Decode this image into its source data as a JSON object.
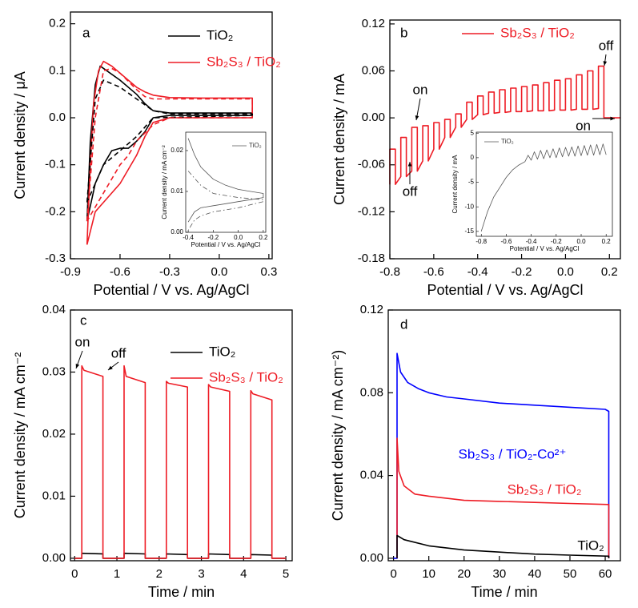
{
  "chart_data": [
    {
      "type": "line",
      "panel_label": "a",
      "xlabel": "Potential / V vs. Ag/AgCl",
      "ylabel": "Current density / μA",
      "xlim": [
        -0.9,
        0.32
      ],
      "xticks": [
        -0.9,
        -0.6,
        -0.3,
        {
          "value": 0,
          "label": "0.0"
        },
        0.3
      ],
      "ylim": [
        -0.3,
        0.225
      ],
      "yticks": [
        -0.3,
        -0.2,
        -0.1,
        {
          "value": 0,
          "label": "0.0"
        },
        0.1,
        0.2
      ],
      "legend": "upper right",
      "series": [
        {
          "name": "TiO₂",
          "color": "#000000",
          "linestyle": "solid",
          "x": [
            -0.8,
            -0.78,
            -0.75,
            -0.72,
            -0.68,
            -0.6,
            -0.5,
            -0.45,
            -0.4,
            -0.3,
            0.2,
            0.2,
            -0.3,
            -0.4,
            -0.45,
            -0.5,
            -0.55,
            -0.6,
            -0.65,
            -0.7,
            -0.75,
            -0.8
          ],
          "values": [
            -0.22,
            -0.05,
            0.07,
            0.11,
            0.1,
            0.08,
            0.05,
            0.03,
            0.015,
            0.01,
            0.01,
            0.005,
            0.005,
            0.0,
            -0.03,
            -0.05,
            -0.065,
            -0.065,
            -0.07,
            -0.1,
            -0.14,
            -0.22
          ]
        },
        {
          "name": "Sb₂S₃ / TiO₂",
          "color": "#ee1c25",
          "linestyle": "solid",
          "x": [
            -0.8,
            -0.78,
            -0.76,
            -0.73,
            -0.7,
            -0.65,
            -0.6,
            -0.55,
            -0.5,
            -0.45,
            -0.4,
            -0.3,
            -0.1,
            0.2,
            0.2,
            0.0,
            -0.3,
            -0.4,
            -0.45,
            -0.5,
            -0.55,
            -0.6,
            -0.7,
            -0.75,
            -0.8
          ],
          "values": [
            -0.27,
            -0.1,
            0.03,
            0.1,
            0.12,
            0.11,
            0.095,
            0.08,
            0.065,
            0.055,
            0.048,
            0.043,
            0.042,
            0.042,
            0.0,
            0.0,
            0.0,
            -0.01,
            -0.04,
            -0.08,
            -0.11,
            -0.14,
            -0.18,
            -0.2,
            -0.27
          ]
        },
        {
          "color": "#000000",
          "linestyle": "dashed",
          "x": [
            -0.8,
            -0.75,
            -0.7,
            -0.6,
            -0.5,
            -0.4,
            -0.3,
            0.2,
            0.2,
            -0.4,
            -0.5,
            -0.6,
            -0.7,
            -0.8
          ],
          "values": [
            -0.18,
            0.04,
            0.08,
            0.065,
            0.04,
            0.015,
            0.008,
            0.008,
            0.005,
            0.0,
            -0.04,
            -0.07,
            -0.1,
            -0.18
          ]
        },
        {
          "color": "#ee1c25",
          "linestyle": "dashed",
          "x": [
            -0.8,
            -0.75,
            -0.7,
            -0.65,
            -0.6,
            -0.5,
            -0.45,
            -0.4,
            -0.2,
            0.2,
            0.2,
            -0.3,
            -0.4,
            -0.5,
            -0.55,
            -0.6,
            -0.7,
            -0.8
          ],
          "values": [
            -0.22,
            0.0,
            0.1,
            0.105,
            0.095,
            0.06,
            0.045,
            0.04,
            0.04,
            0.04,
            0.0,
            0.0,
            -0.015,
            -0.05,
            -0.08,
            -0.1,
            -0.16,
            -0.22
          ]
        }
      ]
    },
    {
      "type": "line",
      "inset": true,
      "xlabel": "Potential / V vs. Ag/AgCl",
      "ylabel": "Current density / mA cm⁻²",
      "xlim": [
        -0.42,
        0.22
      ],
      "xticks": [
        -0.4,
        -0.2,
        {
          "value": 0,
          "label": "0.0"
        },
        0.2
      ],
      "ylim": [
        0,
        0.0245
      ],
      "yticks": [
        {
          "value": 0,
          "label": "0.00"
        },
        0.01,
        0.02
      ],
      "legend": "upper right",
      "series": [
        {
          "name": "TiO₂",
          "color": "#555555",
          "linestyle": "solid",
          "x": [
            -0.4,
            -0.35,
            -0.3,
            -0.2,
            -0.1,
            0,
            0.1,
            0.2,
            0.2,
            0.1,
            0,
            -0.1,
            -0.2,
            -0.3,
            -0.35,
            -0.4
          ],
          "values": [
            0.023,
            0.019,
            0.016,
            0.013,
            0.0115,
            0.0105,
            0.01,
            0.0095,
            0.0085,
            0.008,
            0.0075,
            0.007,
            0.0065,
            0.006,
            0.005,
            0.0025
          ]
        },
        {
          "color": "#555555",
          "linestyle": "dashdot",
          "x": [
            -0.4,
            -0.3,
            -0.2,
            -0.1,
            0,
            0.2,
            0.2,
            0,
            -0.2,
            -0.3,
            -0.35,
            -0.4
          ],
          "values": [
            0.015,
            0.0115,
            0.0095,
            0.009,
            0.0085,
            0.008,
            0.0075,
            0.006,
            0.005,
            0.004,
            0.003,
            0.0005
          ]
        }
      ]
    },
    {
      "type": "line",
      "panel_label": "b",
      "xlabel": "Potential / V vs. Ag/AgCl",
      "ylabel": "Current density / mA",
      "xlim": [
        -0.8,
        0.25
      ],
      "xticks": [
        -0.8,
        -0.6,
        -0.4,
        -0.2,
        {
          "value": 0,
          "label": "0.0"
        },
        0.2
      ],
      "ylim": [
        -0.18,
        0.125
      ],
      "yticks": [
        -0.18,
        -0.12,
        -0.06,
        {
          "value": 0,
          "label": "0.00"
        },
        0.06,
        0.12
      ],
      "legend": "upper right",
      "annotations": [
        "on",
        "off",
        "off",
        "on"
      ],
      "series": [
        {
          "name": "Sb₂S₃ / TiO₂",
          "color": "#ee1c25",
          "linestyle": "solid",
          "x": [
            -0.8,
            -0.8,
            -0.775,
            -0.775,
            -0.75,
            -0.75,
            -0.725,
            -0.725,
            -0.7,
            -0.7,
            -0.675,
            -0.675,
            -0.65,
            -0.65,
            -0.625,
            -0.625,
            -0.6,
            -0.6,
            -0.575,
            -0.575,
            -0.55,
            -0.55,
            -0.525,
            -0.525,
            -0.5,
            -0.5,
            -0.475,
            -0.475,
            -0.45,
            -0.45,
            -0.425,
            -0.425,
            -0.4,
            -0.4,
            -0.375,
            -0.375,
            -0.35,
            -0.35,
            -0.325,
            -0.325,
            -0.3,
            -0.3,
            -0.275,
            -0.275,
            -0.25,
            -0.25,
            -0.225,
            -0.225,
            -0.2,
            -0.2,
            -0.175,
            -0.175,
            -0.15,
            -0.15,
            -0.125,
            -0.125,
            -0.1,
            -0.1,
            -0.075,
            -0.075,
            -0.05,
            -0.05,
            -0.025,
            -0.025,
            0.0,
            0.0,
            0.025,
            0.025,
            0.05,
            0.05,
            0.075,
            0.075,
            0.1,
            0.1,
            0.125,
            0.125,
            0.15,
            0.15,
            0.175,
            0.175,
            0.25
          ],
          "values": [
            -0.085,
            -0.04,
            -0.04,
            -0.085,
            -0.075,
            -0.025,
            -0.025,
            -0.075,
            -0.068,
            -0.012,
            -0.012,
            -0.068,
            -0.055,
            -0.01,
            -0.01,
            -0.055,
            -0.04,
            -0.006,
            -0.006,
            -0.04,
            -0.025,
            -0.002,
            -0.002,
            -0.025,
            -0.012,
            0.005,
            0.005,
            -0.012,
            -0.002,
            0.02,
            0.02,
            -0.002,
            0.004,
            0.028,
            0.028,
            0.004,
            0.006,
            0.033,
            0.033,
            0.006,
            0.007,
            0.036,
            0.036,
            0.007,
            0.008,
            0.038,
            0.038,
            0.008,
            0.008,
            0.04,
            0.04,
            0.008,
            0.009,
            0.042,
            0.042,
            0.009,
            0.009,
            0.045,
            0.045,
            0.009,
            0.01,
            0.048,
            0.048,
            0.01,
            0.01,
            0.05,
            0.05,
            0.01,
            0.011,
            0.055,
            0.055,
            0.011,
            0.011,
            0.06,
            0.06,
            0.011,
            0.012,
            0.066,
            0.066,
            0,
            0
          ]
        }
      ]
    },
    {
      "type": "line",
      "inset": true,
      "xlabel": "Potential / V vs. Ag/AgCl",
      "ylabel": "Current density / mA",
      "xlim": [
        -0.84,
        0.25
      ],
      "xticks": [
        -0.8,
        -0.6,
        -0.4,
        -0.2,
        {
          "value": 0,
          "label": "0.0"
        },
        0.2
      ],
      "ylim": [
        -16,
        5.2
      ],
      "yticks": [
        -15,
        -10,
        -5,
        0,
        5
      ],
      "legend": "upper left",
      "series": [
        {
          "name": "TiO₂",
          "color": "#555555",
          "linestyle": "solid",
          "x": [
            -0.8,
            -0.75,
            -0.7,
            -0.65,
            -0.6,
            -0.55,
            -0.5,
            -0.45,
            -0.425,
            -0.4,
            -0.375,
            -0.35,
            -0.325,
            -0.3,
            -0.275,
            -0.25,
            -0.225,
            -0.2,
            -0.175,
            -0.15,
            -0.125,
            -0.1,
            -0.075,
            -0.05,
            -0.025,
            0,
            0.025,
            0.05,
            0.075,
            0.1,
            0.125,
            0.15,
            0.175,
            0.2
          ],
          "values": [
            -15,
            -11,
            -8,
            -6,
            -4,
            -2.5,
            -1.5,
            -0.8,
            0.5,
            -0.5,
            1.2,
            -0.3,
            1.5,
            -0.2,
            1.6,
            0,
            1.8,
            0,
            2,
            0.2,
            2.1,
            0.3,
            2.2,
            0.3,
            2.4,
            0.4,
            2.5,
            0.5,
            2.6,
            0.5,
            2.7,
            0.6,
            2.8,
            0.6
          ]
        }
      ]
    },
    {
      "type": "line",
      "panel_label": "c",
      "xlabel": "Time / min",
      "ylabel": "Current density / mA cm⁻²",
      "xlim": [
        -0.1,
        5.15
      ],
      "xticks": [
        0,
        1,
        2,
        3,
        4,
        5
      ],
      "ylim": [
        -0.0004,
        0.04
      ],
      "yticks": [
        {
          "value": 0,
          "label": "0.00"
        },
        0.01,
        0.02,
        0.03,
        0.04
      ],
      "legend": "upper right",
      "annotations": [
        "on",
        "off"
      ],
      "series": [
        {
          "name": "TiO₂",
          "color": "#000000",
          "linestyle": "solid",
          "x": [
            0,
            0.17,
            0.17,
            0.67,
            0.67,
            1.17,
            1.17,
            1.67,
            1.67,
            2.17,
            2.17,
            2.67,
            2.67,
            3.17,
            3.17,
            3.67,
            3.67,
            4.17,
            4.17,
            4.67,
            4.67,
            5
          ],
          "values": [
            0,
            0,
            0.0008,
            0.0007,
            0,
            0,
            0.0008,
            0.0007,
            0,
            0,
            0.0007,
            0.0006,
            0,
            0,
            0.0007,
            0.0006,
            0,
            0,
            0.0006,
            0.0005,
            0,
            0
          ]
        },
        {
          "name": "Sb₂S₃ / TiO₂",
          "color": "#ee1c25",
          "linestyle": "solid",
          "x": [
            0,
            0.17,
            0.17,
            0.22,
            0.67,
            0.67,
            1.17,
            1.17,
            1.22,
            1.67,
            1.67,
            2.17,
            2.17,
            2.22,
            2.67,
            2.67,
            3.17,
            3.17,
            3.22,
            3.67,
            3.67,
            4.17,
            4.17,
            4.22,
            4.67,
            4.67,
            5
          ],
          "values": [
            0,
            0,
            0.031,
            0.0303,
            0.0293,
            0,
            0,
            0.031,
            0.0293,
            0.0283,
            0,
            0,
            0.0285,
            0.0282,
            0.0276,
            0,
            0,
            0.028,
            0.0276,
            0.0269,
            0,
            0,
            0.027,
            0.0265,
            0.0255,
            0,
            0
          ]
        }
      ]
    },
    {
      "type": "line",
      "panel_label": "d",
      "xlabel": "Time / min",
      "ylabel": "Current density / mA cm⁻²)",
      "xlim": [
        -1.5,
        64.3
      ],
      "xticks": [
        0,
        10,
        20,
        30,
        40,
        50,
        60
      ],
      "ylim": [
        -0.0012,
        0.12
      ],
      "yticks": [
        {
          "value": 0,
          "label": "0.00"
        },
        0.04,
        0.08,
        0.12
      ],
      "annotations": [
        {
          "text": "Sb₂S₃ / TiO₂-Co²⁺",
          "color": "#0000ff"
        },
        {
          "text": "Sb₂S₃ / TiO₂",
          "color": "#ee1c25"
        },
        {
          "text": "TiO₂",
          "color": "#000000"
        }
      ],
      "series": [
        {
          "color": "#0000ff",
          "linestyle": "solid",
          "x": [
            0,
            1,
            1,
            2,
            4,
            7,
            10,
            15,
            20,
            30,
            40,
            50,
            60,
            61,
            61
          ],
          "values": [
            0,
            0,
            0.099,
            0.09,
            0.085,
            0.082,
            0.08,
            0.078,
            0.077,
            0.075,
            0.074,
            0.073,
            0.072,
            0.071,
            0
          ]
        },
        {
          "color": "#ee1c25",
          "linestyle": "solid",
          "x": [
            1,
            1,
            1.5,
            3,
            6,
            10,
            20,
            30,
            40,
            50,
            61,
            61
          ],
          "values": [
            0,
            0.058,
            0.042,
            0.035,
            0.031,
            0.03,
            0.028,
            0.0275,
            0.027,
            0.0265,
            0.026,
            0
          ]
        },
        {
          "color": "#000000",
          "linestyle": "solid",
          "x": [
            1,
            1,
            3,
            10,
            20,
            30,
            40,
            50,
            61,
            61
          ],
          "values": [
            0,
            0.011,
            0.009,
            0.006,
            0.004,
            0.003,
            0.002,
            0.0015,
            0.001,
            0
          ]
        }
      ]
    }
  ]
}
